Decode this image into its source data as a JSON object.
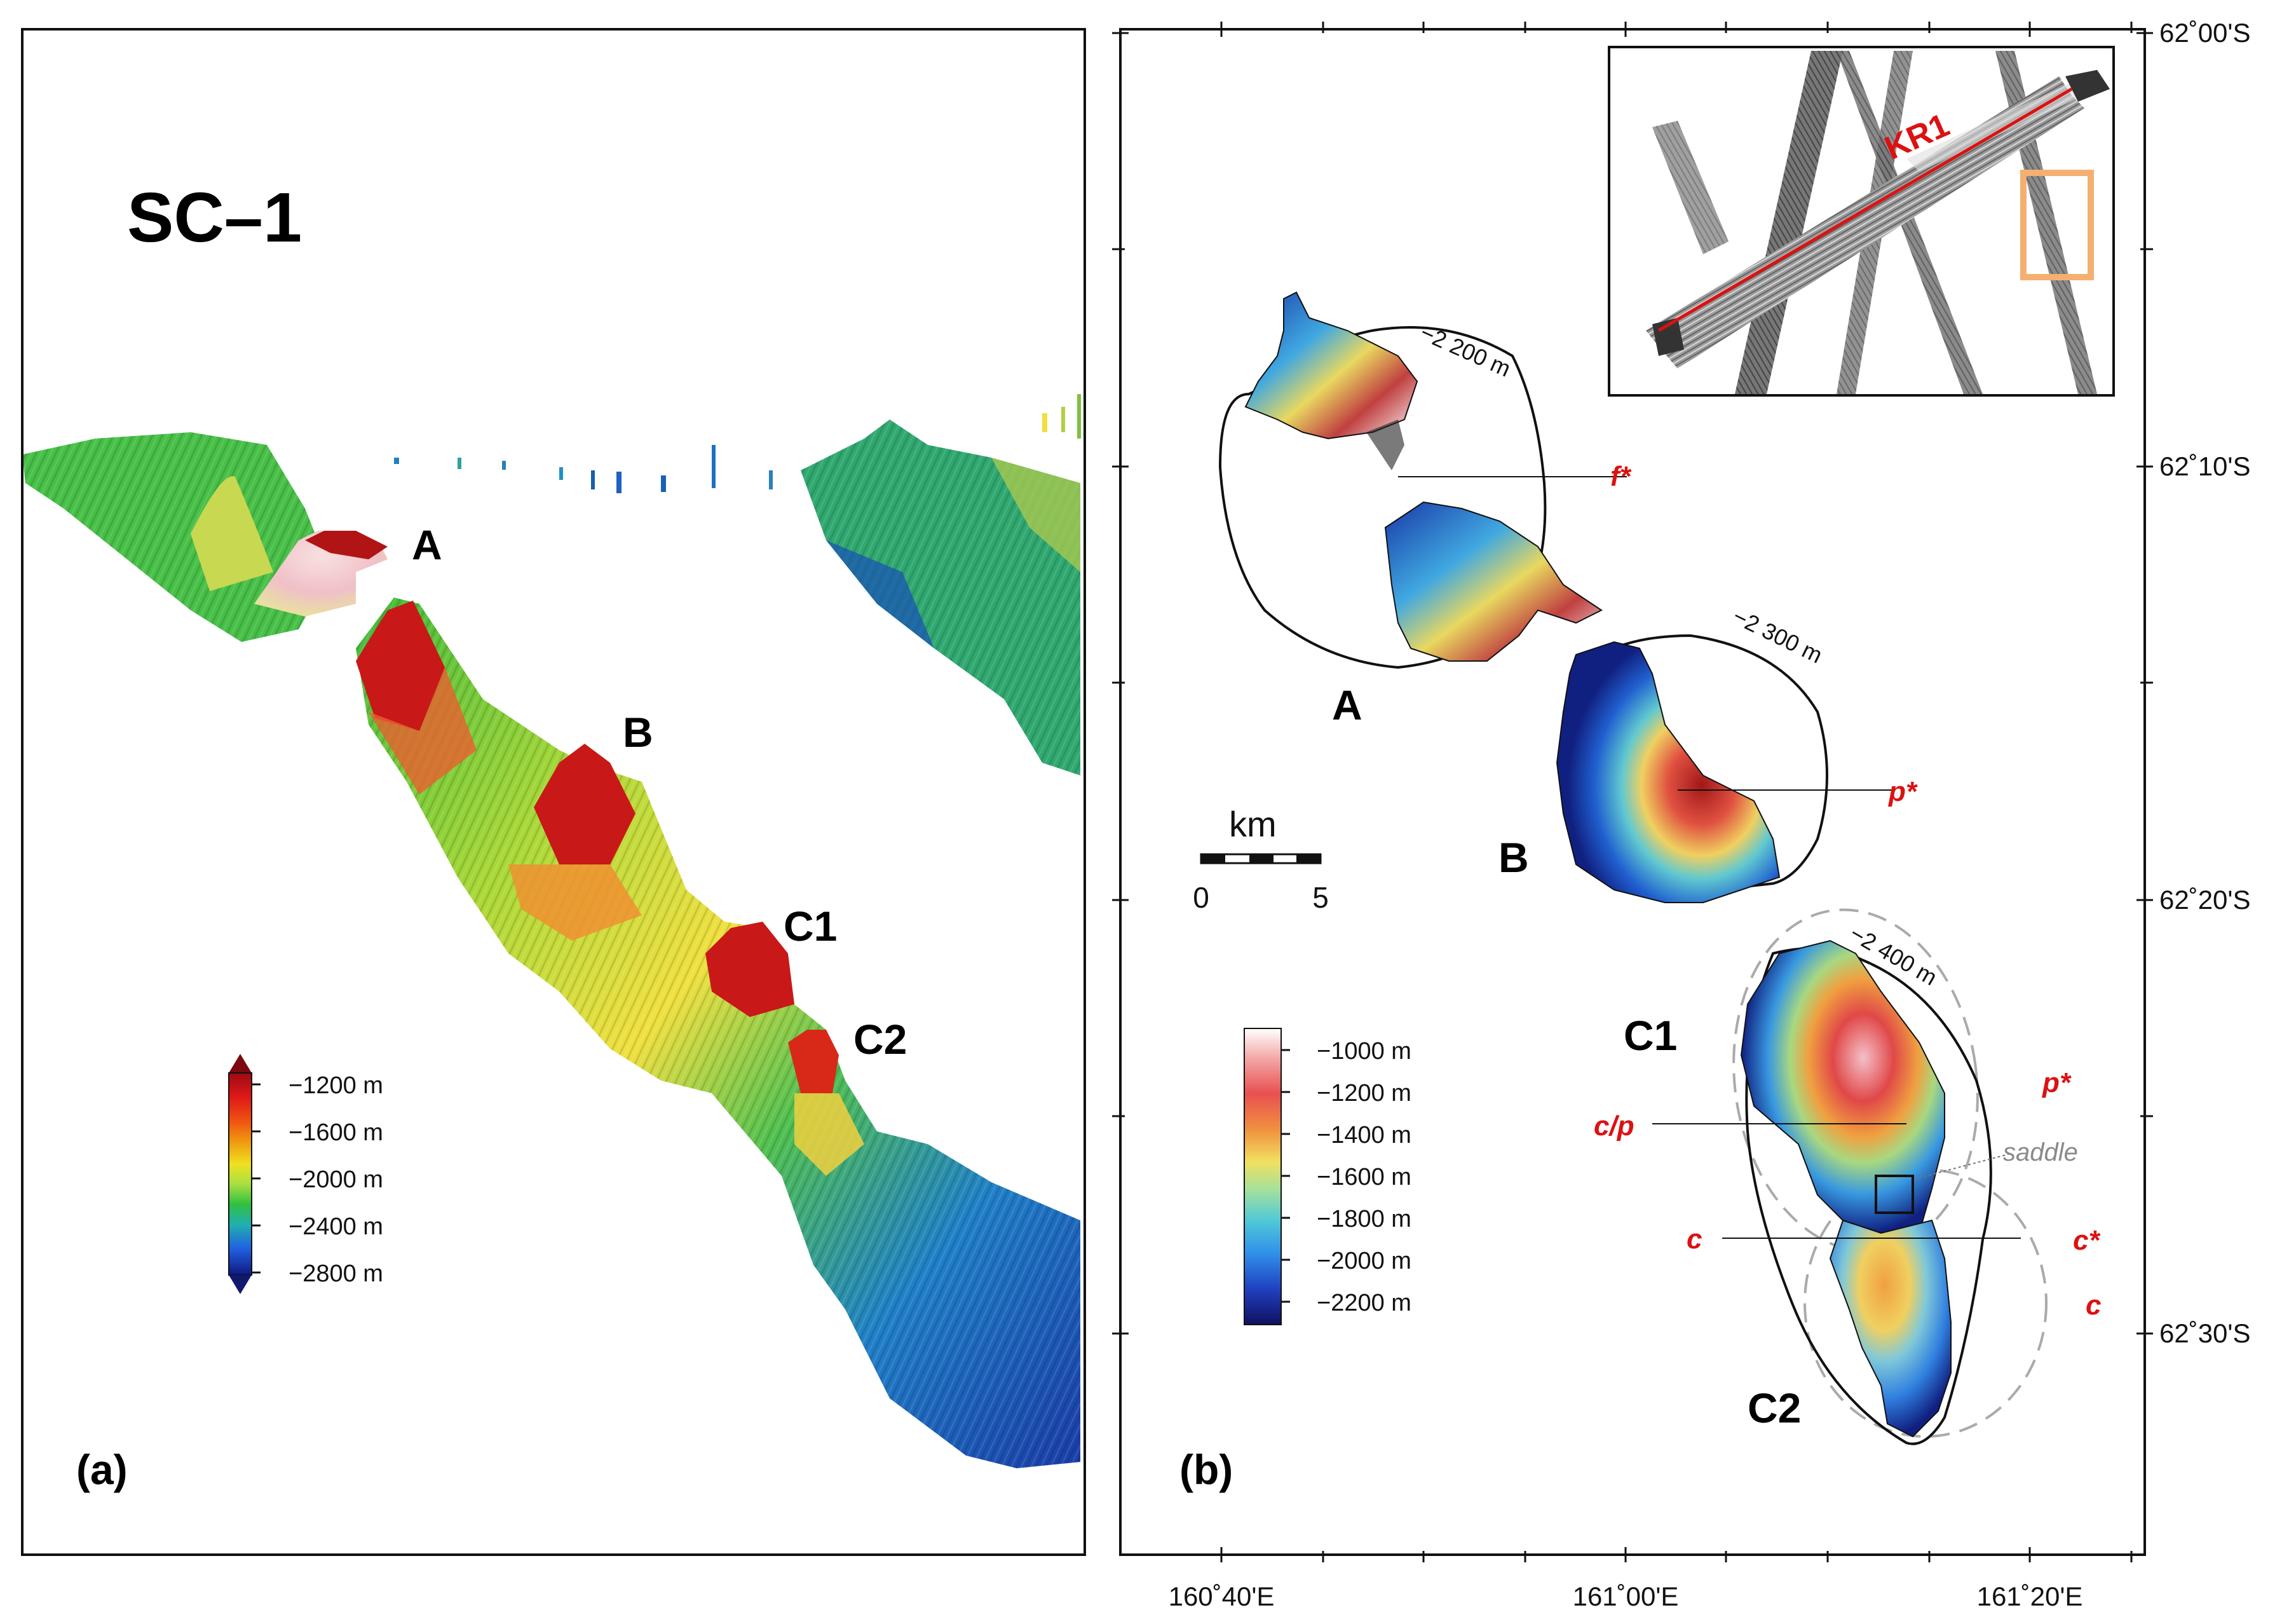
{
  "panel_a": {
    "title": "SC–1",
    "panel_label": "(a)",
    "peaks": [
      "A",
      "B",
      "C1",
      "C2"
    ],
    "colorbar_ticks": [
      "−1200 m",
      "−1600 m",
      "−2000 m",
      "−2400 m",
      "−2800 m"
    ]
  },
  "panel_b": {
    "panel_label": "(b)",
    "peaks": [
      "A",
      "B",
      "C1",
      "C2"
    ],
    "contours": [
      "−2 200 m",
      "−2 300 m",
      "−2 400 m"
    ],
    "annotations": [
      "f*",
      "p*",
      "p*",
      "c/p",
      "c",
      "c*",
      "c"
    ],
    "saddle_label": "saddle",
    "inset_label": "KR1",
    "scale_bar": {
      "unit": "km",
      "ticks": [
        "0",
        "5"
      ]
    },
    "colorbar_ticks": [
      "−1000 m",
      "−1200 m",
      "−1400 m",
      "−1600 m",
      "−1800 m",
      "−2000 m",
      "−2200 m"
    ],
    "lat_ticks": [
      "62˚00'S",
      "62˚10'S",
      "62˚20'S",
      "62˚30'S"
    ],
    "lon_ticks": [
      "160˚40'E",
      "161˚00'E",
      "161˚20'E"
    ]
  }
}
